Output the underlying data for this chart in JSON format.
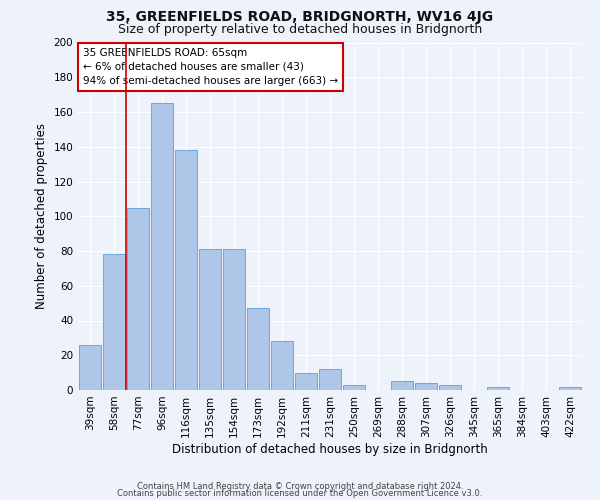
{
  "title": "35, GREENFIELDS ROAD, BRIDGNORTH, WV16 4JG",
  "subtitle": "Size of property relative to detached houses in Bridgnorth",
  "xlabel": "Distribution of detached houses by size in Bridgnorth",
  "ylabel": "Number of detached properties",
  "bar_color": "#aec6e8",
  "bar_edge_color": "#5a9fd4",
  "categories": [
    "39sqm",
    "58sqm",
    "77sqm",
    "96sqm",
    "116sqm",
    "135sqm",
    "154sqm",
    "173sqm",
    "192sqm",
    "211sqm",
    "231sqm",
    "250sqm",
    "269sqm",
    "288sqm",
    "307sqm",
    "326sqm",
    "345sqm",
    "365sqm",
    "384sqm",
    "403sqm",
    "422sqm"
  ],
  "values": [
    26,
    78,
    105,
    165,
    138,
    81,
    81,
    47,
    28,
    10,
    12,
    3,
    0,
    5,
    4,
    3,
    0,
    2,
    0,
    0,
    2
  ],
  "ylim": [
    0,
    200
  ],
  "yticks": [
    0,
    20,
    40,
    60,
    80,
    100,
    120,
    140,
    160,
    180,
    200
  ],
  "property_line_x": 1.5,
  "annotation_text": "35 GREENFIELDS ROAD: 65sqm\n← 6% of detached houses are smaller (43)\n94% of semi-detached houses are larger (663) →",
  "annotation_box_color": "#ffffff",
  "annotation_box_edge": "#cc0000",
  "footer1": "Contains HM Land Registry data © Crown copyright and database right 2024.",
  "footer2": "Contains public sector information licensed under the Open Government Licence v3.0.",
  "background_color": "#eef2fa",
  "grid_color": "#ffffff",
  "title_fontsize": 10,
  "subtitle_fontsize": 9,
  "axis_label_fontsize": 8.5,
  "tick_fontsize": 7.5,
  "footer_fontsize": 6
}
